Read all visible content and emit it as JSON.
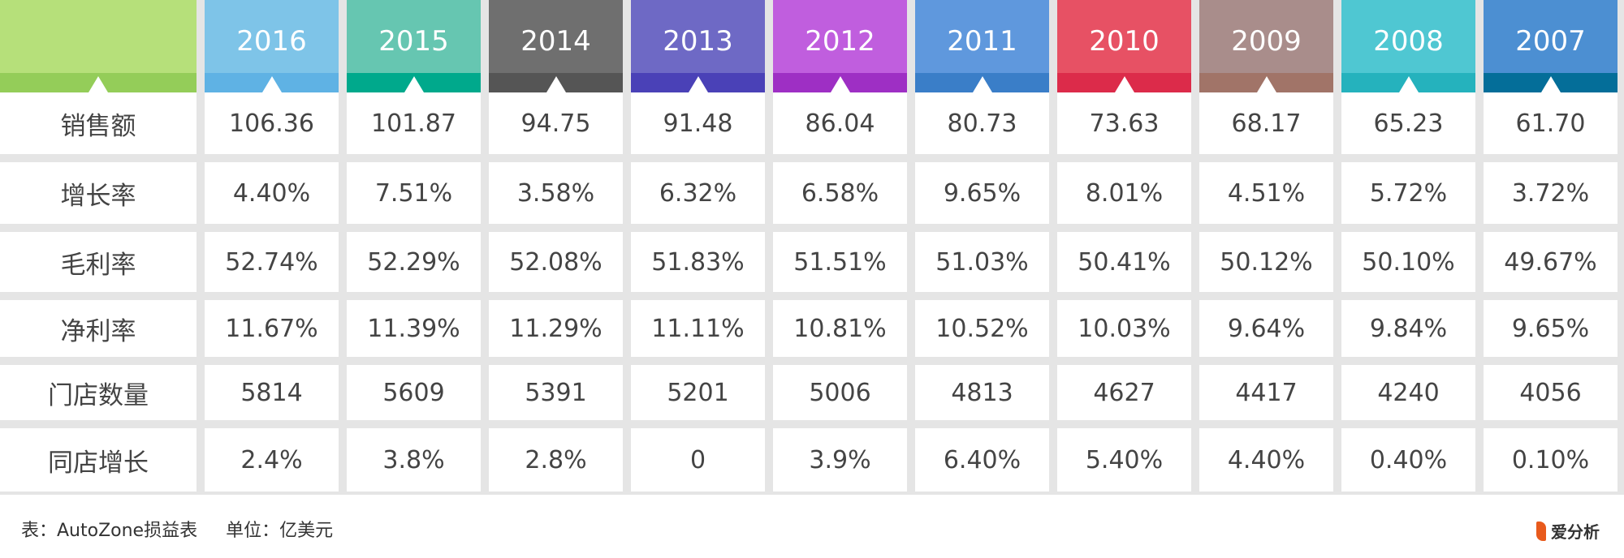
{
  "chart_data": {
    "type": "table",
    "columns": [
      "2016",
      "2015",
      "2014",
      "2013",
      "2012",
      "2011",
      "2010",
      "2009",
      "2008",
      "2007"
    ],
    "header_colors": [
      {
        "top": "#7ec4e8",
        "band": "#5fb2e4"
      },
      {
        "top": "#66c6b1",
        "band": "#00a98c"
      },
      {
        "top": "#6f6f6f",
        "band": "#555555"
      },
      {
        "top": "#6e69c5",
        "band": "#4a41b7"
      },
      {
        "top": "#c05ede",
        "band": "#9e2fc4"
      },
      {
        "top": "#5f98dd",
        "band": "#3a7ec8"
      },
      {
        "top": "#e75164",
        "band": "#dc2b4a"
      },
      {
        "top": "#a98d8b",
        "band": "#a17468"
      },
      {
        "top": "#4fc7d2",
        "band": "#25b2bd"
      },
      {
        "top": "#4c8fd2",
        "band": "#046e99"
      }
    ],
    "corner_colors": {
      "top": "#b6e07a",
      "band": "#94cd59"
    },
    "rows": [
      {
        "label": "销售额",
        "values": [
          "106.36",
          "101.87",
          "94.75",
          "91.48",
          "86.04",
          "80.73",
          "73.63",
          "68.17",
          "65.23",
          "61.70"
        ]
      },
      {
        "label": "增长率",
        "values": [
          "4.40%",
          "7.51%",
          "3.58%",
          "6.32%",
          "6.58%",
          "9.65%",
          "8.01%",
          "4.51%",
          "5.72%",
          "3.72%"
        ]
      },
      {
        "label": "毛利率",
        "values": [
          "52.74%",
          "52.29%",
          "52.08%",
          "51.83%",
          "51.51%",
          "51.03%",
          "50.41%",
          "50.12%",
          "50.10%",
          "49.67%"
        ]
      },
      {
        "label": "净利率",
        "values": [
          "11.67%",
          "11.39%",
          "11.29%",
          "11.11%",
          "10.81%",
          "10.52%",
          "10.03%",
          "9.64%",
          "9.84%",
          "9.65%"
        ]
      },
      {
        "label": "门店数量",
        "values": [
          "5814",
          "5609",
          "5391",
          "5201",
          "5006",
          "4813",
          "4627",
          "4417",
          "4240",
          "4056"
        ]
      },
      {
        "label": "同店增长",
        "values": [
          "2.4%",
          "3.8%",
          "2.8%",
          "0",
          "3.9%",
          "6.40%",
          "5.40%",
          "4.40%",
          "0.40%",
          "0.10%"
        ]
      }
    ]
  },
  "footer": {
    "caption_table": "表：AutoZone损益表",
    "caption_unit": "单位：亿美元",
    "logo_text": "爱分析"
  }
}
